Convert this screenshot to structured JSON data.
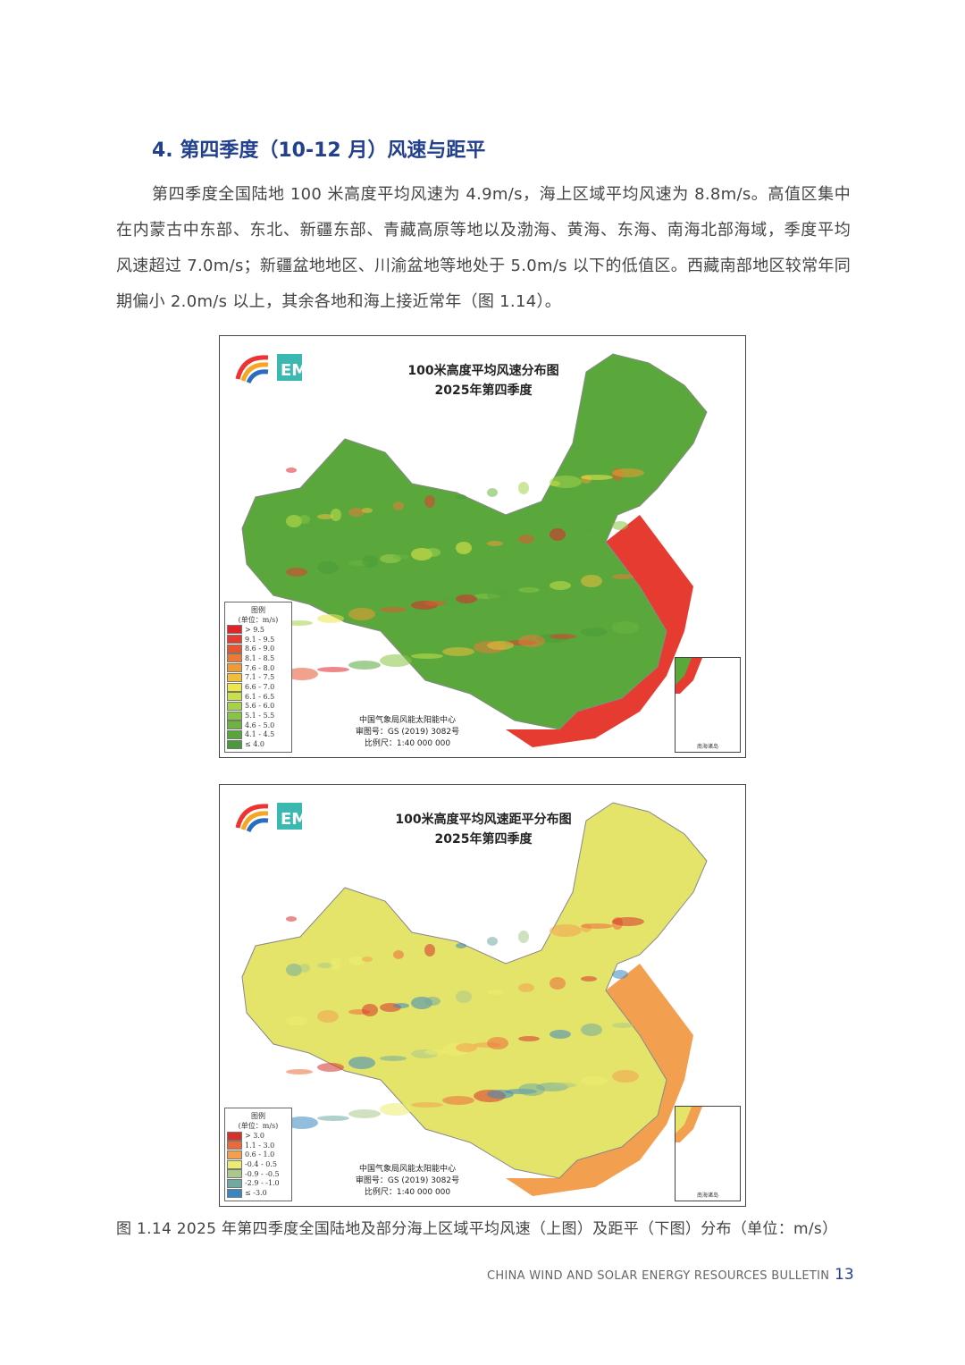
{
  "heading": "4. 第四季度（10-12 月）风速与距平",
  "paragraph": "第四季度全国陆地 100 米高度平均风速为 4.9m/s，海上区域平均风速为 8.8m/s。高值区集中在内蒙古中东部、东北、新疆东部、青藏高原等地以及渤海、黄海、东海、南海北部海域，季度平均风速超过 7.0m/s；新疆盆地地区、川渝盆地等地处于 5.0m/s 以下的低值区。西藏南部地区较常年同期偏小 2.0m/s 以上，其余各地和海上接近常年（图 1.14）。",
  "maps": [
    {
      "title_line1": "100米高度平均风速分布图",
      "title_line2": "2025年第四季度",
      "legend_title": "图例",
      "legend_unit": "(单位：m/s)",
      "legend": [
        {
          "label": "> 9.5",
          "color": "#e0242a"
        },
        {
          "label": "9.1 - 9.5",
          "color": "#e63b30"
        },
        {
          "label": "8.6 - 9.0",
          "color": "#e5552e"
        },
        {
          "label": "8.1 - 8.5",
          "color": "#ea7a36"
        },
        {
          "label": "7.6 - 8.0",
          "color": "#f09a32"
        },
        {
          "label": "7.1 - 7.5",
          "color": "#f1bd3c"
        },
        {
          "label": "6.6 - 7.0",
          "color": "#ece84a"
        },
        {
          "label": "6.1 - 6.5",
          "color": "#c9e04a"
        },
        {
          "label": "5.6 - 6.0",
          "color": "#a6d24a"
        },
        {
          "label": "5.1 - 5.5",
          "color": "#86c443"
        },
        {
          "label": "4.6 - 5.0",
          "color": "#6cb43f"
        },
        {
          "label": "4.1 - 4.5",
          "color": "#58a63b"
        },
        {
          "label": "≤ 4.0",
          "color": "#4a9a3a"
        }
      ],
      "credit_org": "中国气象局风能太阳能中心",
      "credit_approval": "审图号：GS (2019) 3082号",
      "credit_scale": "比例尺：1:40 000 000",
      "land_color": "#5aa83c",
      "sea_color": "#e63b30"
    },
    {
      "title_line1": "100米高度平均风速距平分布图",
      "title_line2": "2025年第四季度",
      "legend_title": "图例",
      "legend_unit": "(单位：m/s)",
      "legend": [
        {
          "label": "> 3.0",
          "color": "#d7302a"
        },
        {
          "label": "1.1 - 3.0",
          "color": "#ec6a3a"
        },
        {
          "label": "0.6 - 1.0",
          "color": "#f2a050"
        },
        {
          "label": "-0.4 - 0.5",
          "color": "#ecec70"
        },
        {
          "label": "-0.9 - -0.5",
          "color": "#a9c98a"
        },
        {
          "label": "-2.9 - -1.0",
          "color": "#6fa9a0"
        },
        {
          "label": "≤ -3.0",
          "color": "#3a86c0"
        }
      ],
      "credit_org": "中国气象局风能太阳能中心",
      "credit_approval": "审图号：GS (2019) 3082号",
      "credit_scale": "比例尺：1:40 000 000",
      "land_color": "#e4e46a",
      "sea_color": "#f2a050"
    }
  ],
  "inset_label": "南海诸岛",
  "caption": "图 1.14   2025 年第四季度全国陆地及部分海上区域平均风速（上图）及距平（下图）分布（单位：m/s）",
  "footer": "CHINA WIND AND SOLAR ENERGY RESOURCES BULLETIN",
  "page_number": "13"
}
